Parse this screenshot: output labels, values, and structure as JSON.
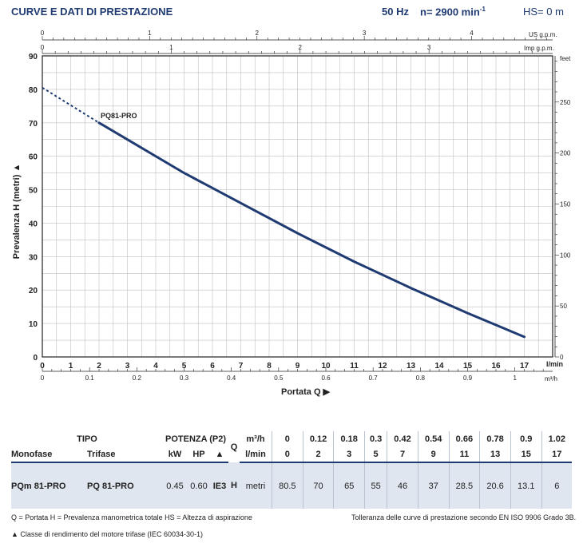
{
  "header": {
    "title": "CURVE E DATI DI PRESTAZIONE",
    "frequency": "50 Hz",
    "speed": "n= 2900 min",
    "speed_exp": "-1",
    "suction": "HS= 0 m"
  },
  "chart_data": {
    "type": "line",
    "xlabel": "Portata Q",
    "ylabel": "Prevalenza H (metri)",
    "xlim": [
      0,
      18
    ],
    "ylim": [
      0,
      90
    ],
    "x_unit": "l/min",
    "y_ticks": [
      0,
      10,
      20,
      30,
      40,
      50,
      60,
      70,
      80,
      90
    ],
    "x_ticks": [
      0,
      1,
      2,
      3,
      4,
      5,
      6,
      7,
      8,
      9,
      10,
      11,
      12,
      13,
      14,
      15,
      16,
      17
    ],
    "secondary_axes": {
      "us_gpm": {
        "label": "US g.p.m.",
        "ticks": [
          0,
          1,
          2,
          3,
          4
        ]
      },
      "imp_gpm": {
        "label": "Imp g.p.m.",
        "ticks": [
          0,
          1,
          2,
          3
        ]
      },
      "m3h": {
        "label": "m³/h",
        "ticks": [
          0,
          0.1,
          0.2,
          0.3,
          0.4,
          0.5,
          0.6,
          0.7,
          0.8,
          0.9,
          1
        ]
      },
      "feet": {
        "label": "feet",
        "ticks": [
          0,
          50,
          100,
          150,
          200,
          250
        ]
      }
    },
    "series": [
      {
        "name": "PQ81-PRO",
        "x": [
          2,
          3,
          5,
          7,
          9,
          11,
          13,
          15,
          17
        ],
        "y": [
          70,
          65,
          55,
          46,
          37,
          28.5,
          20.6,
          13.1,
          6
        ],
        "dashed_extension": {
          "x": [
            0,
            2
          ],
          "y": [
            80.5,
            70
          ]
        }
      }
    ],
    "grid": true
  },
  "table": {
    "h_tipo": "TIPO",
    "h_potenza": "POTENZA (P2)",
    "h_q": "Q",
    "h_m3h": "m³/h",
    "h_lmin": "l/min",
    "h_monofase": "Monofase",
    "h_trifase": "Trifase",
    "h_kw": "kW",
    "h_hp": "HP",
    "h_tri": "▲",
    "m3h": [
      "0",
      "0.12",
      "0.18",
      "0.3",
      "0.42",
      "0.54",
      "0.66",
      "0.78",
      "0.9",
      "1.02"
    ],
    "lmin": [
      "0",
      "2",
      "3",
      "5",
      "7",
      "9",
      "11",
      "13",
      "15",
      "17"
    ],
    "row": {
      "monofase": "PQm 81-PRO",
      "trifase": "PQ 81-PRO",
      "kw": "0.45",
      "hp": "0.60",
      "ie": "IE3",
      "h_label": "H",
      "h_unit": "metri",
      "values": [
        "80.5",
        "70",
        "65",
        "55",
        "46",
        "37",
        "28.5",
        "20.6",
        "13.1",
        "6"
      ]
    }
  },
  "legend": {
    "line1": "Q = Portata  H = Prevalenza manometrica totale  HS = Altezza di aspirazione",
    "line2": "Tolleranza delle curve di prestazione secondo EN ISO 9906 Grado 3B.",
    "line3": "▲  Classe di rendimento del motore trifase (IEC 60034-30-1)"
  }
}
